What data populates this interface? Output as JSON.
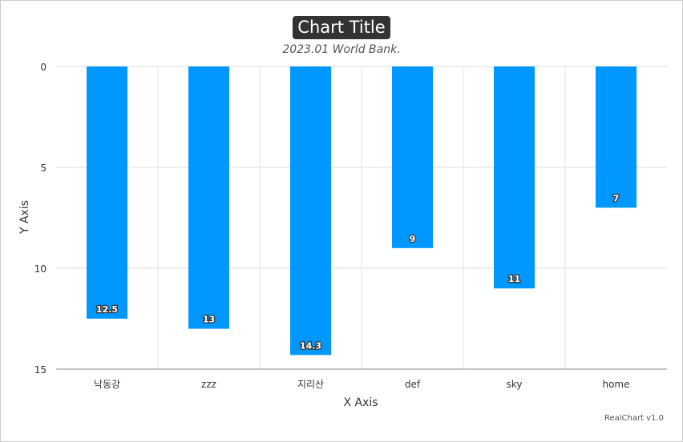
{
  "chart_data": {
    "type": "bar",
    "title": "Chart Title",
    "subtitle": "2023.01 World Bank.",
    "xlabel": "X Axis",
    "ylabel": "Y Axis",
    "categories": [
      "낙동강",
      "zzz",
      "지리산",
      "def",
      "sky",
      "home"
    ],
    "values": [
      12.5,
      13,
      14.3,
      9,
      11,
      7
    ],
    "ylim": [
      0,
      15
    ],
    "y_reversed": true,
    "y_ticks": [
      0,
      5,
      10,
      15
    ],
    "grid": true,
    "bar_color": "#0098ff",
    "data_labels": true
  },
  "credit": "RealChart v1.0"
}
